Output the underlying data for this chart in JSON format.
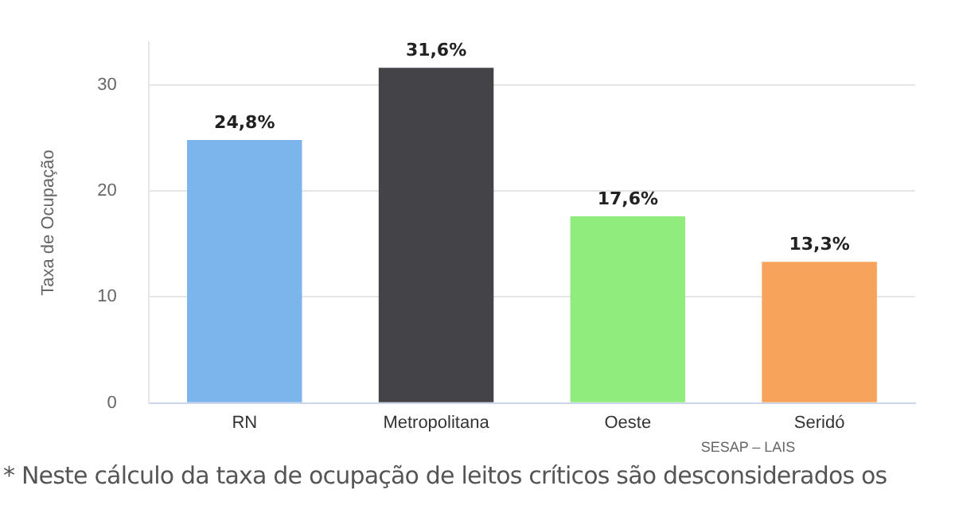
{
  "chart_data": {
    "type": "bar",
    "ylabel": "Taxa de Ocupação",
    "categories": [
      "RN",
      "Metropolitana",
      "Oeste",
      "Seridó"
    ],
    "values": [
      24.8,
      31.6,
      17.6,
      13.3
    ],
    "colors": [
      "#7cb5ec",
      "#434348",
      "#90ed7d",
      "#f7a35c"
    ],
    "value_labels": [
      "24,8%",
      "31,6%",
      "17,6%",
      "13,3%"
    ],
    "ylim": [
      0,
      34
    ],
    "yticks": [
      0,
      10,
      20,
      30
    ],
    "grid": "y",
    "legend": false,
    "annotations": [
      "SESAP – LAIS",
      "* Neste cálculo da taxa de ocupação de leitos críticos são desconsiderados os"
    ]
  }
}
